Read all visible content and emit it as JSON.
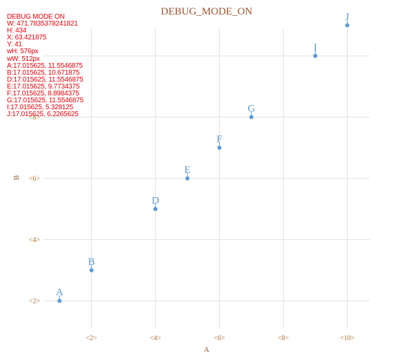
{
  "debug": {
    "lines": [
      "DEBUG MODE ON",
      "W: 471.7835378241821",
      "H: 434",
      "X: 63.421875",
      "Y: 41",
      "wH: 576px",
      "wW: 512px",
      "A:17.015625, 11.5546875",
      "B:17.015625, 10.671875",
      "D:17.015625, 11.5546875",
      "E:17.015625, 9.7734375",
      "F:17.015625, 8.8984375",
      "G:17.015625, 11.5546875",
      "I:17.015625, 5.328125",
      "J:17.015625, 6.2265625"
    ]
  },
  "colors": {
    "point": "#5b9bd5",
    "grid": "#e0e0e0",
    "text": "#a0522d",
    "debug": "#e8000b"
  },
  "chart_data": {
    "type": "scatter",
    "title": "DEBUG_MODE_ON",
    "xlabel": "A",
    "ylabel": "B",
    "xlim": [
      0.5,
      10.7
    ],
    "ylim": [
      1.1,
      10.9
    ],
    "grid": true,
    "x_ticks": [
      2,
      4,
      6,
      8,
      10
    ],
    "x_tick_labels": [
      "<2>",
      "<4>",
      "<6>",
      "<8>",
      "<10>"
    ],
    "y_ticks": [
      2,
      4,
      6,
      8,
      10
    ],
    "y_tick_labels": [
      "<2>",
      "<4>",
      "<6>",
      "<8>",
      ""
    ],
    "points": [
      {
        "label": "A",
        "x": 1,
        "y": 2
      },
      {
        "label": "B",
        "x": 2,
        "y": 3
      },
      {
        "label": "D",
        "x": 4,
        "y": 5
      },
      {
        "label": "E",
        "x": 5,
        "y": 6
      },
      {
        "label": "F",
        "x": 6,
        "y": 7
      },
      {
        "label": "G",
        "x": 7,
        "y": 8
      },
      {
        "label": "I",
        "x": 9,
        "y": 10
      },
      {
        "label": "J",
        "x": 10,
        "y": 11
      }
    ]
  }
}
